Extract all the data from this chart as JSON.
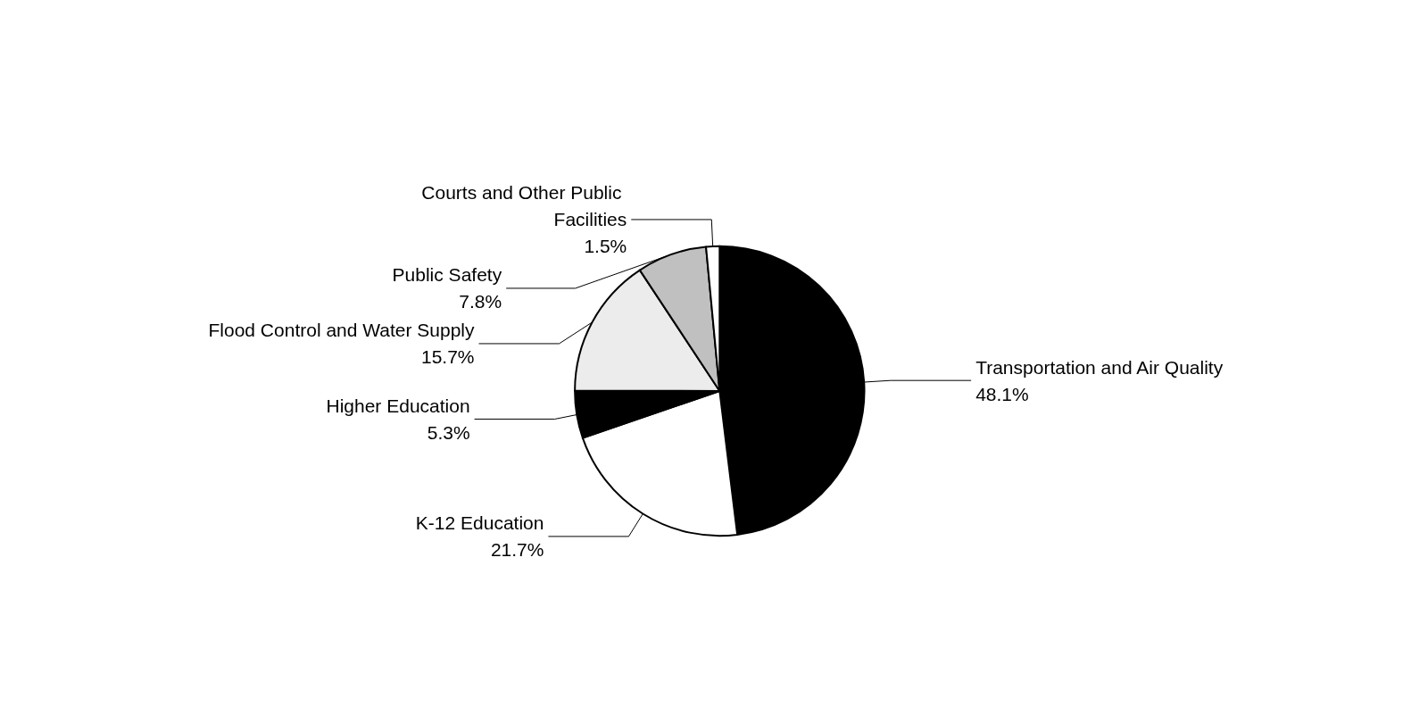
{
  "chart_data": {
    "type": "pie",
    "categories": [
      "Transportation and Air Quality",
      "K-12 Education",
      "Higher Education",
      "Flood Control and Water Supply",
      "Public Safety",
      "Courts and Other Public Facilities"
    ],
    "values": [
      48.1,
      21.7,
      5.3,
      15.7,
      7.8,
      1.5
    ],
    "value_labels": [
      "48.1%",
      "21.7%",
      "5.3%",
      "15.7%",
      "7.8%",
      "1.5%"
    ],
    "colors": [
      "#000000",
      "#ffffff",
      "#000000",
      "#ececec",
      "#c0c0c0",
      "#ffffff"
    ],
    "legend": false
  }
}
